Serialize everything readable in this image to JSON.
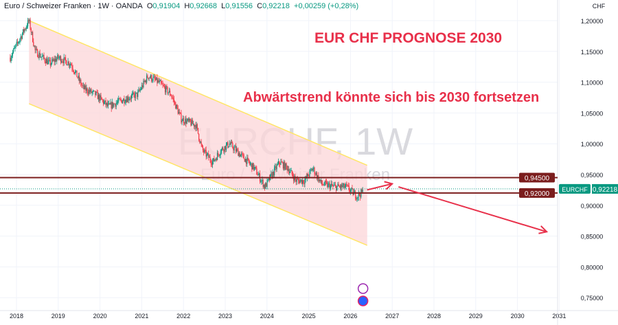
{
  "header": {
    "symbol": "Euro / Schweizer Franken · 1W · OANDA",
    "o_label": "O",
    "o": "0,91904",
    "h_label": "H",
    "h": "0,92668",
    "l_label": "L",
    "l": "0,91556",
    "c_label": "C",
    "c": "0,92218",
    "change": "+0,00259 (+0,28%)"
  },
  "annotations": {
    "title": "EUR CHF PROGNOSE 2030",
    "subtitle": "Abwärtstrend könnte sich bis 2030 fortsetzen"
  },
  "watermark": {
    "line1": "EURCHF, 1W",
    "line2": "Euro / Schweizer Franken"
  },
  "colors": {
    "up": "#089981",
    "down": "#f23645",
    "channel_fill": "#fcd5d8",
    "channel_border": "#ffe566",
    "level_line": "#7b1d1d",
    "arrow": "#e8304a",
    "annotation": "#e8304a"
  },
  "chart_data": {
    "type": "candlestick",
    "currency_label": "CHF",
    "ylim": [
      0.73,
      1.205
    ],
    "y_ticks": [
      "1,20000",
      "1,15000",
      "1,10000",
      "1,05000",
      "1,00000",
      "0,95000",
      "0,90000",
      "0,85000",
      "0,80000",
      "0,75000"
    ],
    "y_tick_values": [
      1.2,
      1.15,
      1.1,
      1.05,
      1.0,
      0.95,
      0.9,
      0.85,
      0.8,
      0.75
    ],
    "x_ticks": [
      "2018",
      "2019",
      "2020",
      "2021",
      "2022",
      "2023",
      "2024",
      "2025",
      "2026",
      "2027",
      "2028",
      "2029",
      "2030",
      "2031"
    ],
    "approx_close_path": [
      [
        2017.85,
        1.14
      ],
      [
        2018.0,
        1.16
      ],
      [
        2018.3,
        1.2
      ],
      [
        2018.45,
        1.15
      ],
      [
        2018.8,
        1.13
      ],
      [
        2019.0,
        1.14
      ],
      [
        2019.3,
        1.13
      ],
      [
        2019.6,
        1.09
      ],
      [
        2019.9,
        1.08
      ],
      [
        2020.2,
        1.06
      ],
      [
        2020.5,
        1.07
      ],
      [
        2020.9,
        1.08
      ],
      [
        2021.15,
        1.11
      ],
      [
        2021.4,
        1.1
      ],
      [
        2021.7,
        1.08
      ],
      [
        2021.95,
        1.04
      ],
      [
        2022.3,
        1.03
      ],
      [
        2022.45,
        0.99
      ],
      [
        2022.7,
        0.97
      ],
      [
        2022.9,
        0.99
      ],
      [
        2023.1,
        1.0
      ],
      [
        2023.4,
        0.98
      ],
      [
        2023.7,
        0.96
      ],
      [
        2023.95,
        0.93
      ],
      [
        2024.3,
        0.97
      ],
      [
        2024.5,
        0.96
      ],
      [
        2024.7,
        0.94
      ],
      [
        2024.9,
        0.94
      ],
      [
        2025.1,
        0.96
      ],
      [
        2025.3,
        0.935
      ],
      [
        2025.6,
        0.93
      ],
      [
        2025.9,
        0.93
      ],
      [
        2026.15,
        0.915
      ],
      [
        2026.3,
        0.922
      ]
    ],
    "channel": {
      "upper": [
        [
          2018.3,
          1.2
        ],
        [
          2026.4,
          0.965
        ]
      ],
      "lower": [
        [
          2018.3,
          1.065
        ],
        [
          2026.4,
          0.835
        ]
      ]
    },
    "levels": [
      {
        "value": 0.945,
        "label": "0,94500"
      },
      {
        "value": 0.92,
        "label": "0,92000"
      }
    ],
    "last_price": {
      "label": "EURCHF",
      "value": "0,92218",
      "price": 0.92218
    },
    "forecast_arrows": [
      [
        [
          2026.4,
          0.925
        ],
        [
          2027.0,
          0.935
        ]
      ],
      [
        [
          2027.15,
          0.93
        ],
        [
          2030.7,
          0.857
        ]
      ]
    ]
  }
}
